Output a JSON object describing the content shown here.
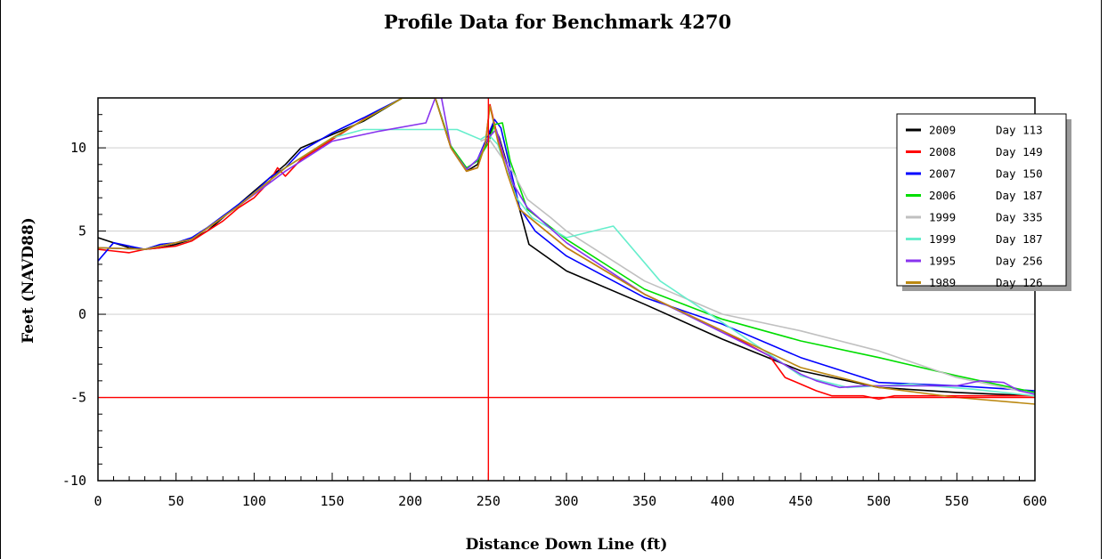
{
  "chart_data": {
    "type": "line",
    "title": "Profile Data for Benchmark 4270",
    "xlabel": "Distance Down Line (ft)",
    "ylabel": "Feet (NAVD88)",
    "xlim": [
      0,
      600
    ],
    "ylim": [
      -10,
      13
    ],
    "xticks": [
      0,
      50,
      100,
      150,
      200,
      250,
      300,
      350,
      400,
      450,
      500,
      550,
      600
    ],
    "yticks": [
      -10,
      -5,
      0,
      5,
      10
    ],
    "grid": "horizontal",
    "legend": "top-right",
    "reference_lines": {
      "x": 250,
      "y": -5,
      "color": "#ff0000"
    },
    "series": [
      {
        "name": "2009",
        "day_label": "Day 113",
        "color": "#000000",
        "x": [
          0,
          10,
          20,
          30,
          40,
          50,
          60,
          70,
          80,
          90,
          100,
          110,
          120,
          130,
          150,
          170,
          195,
          216,
          226,
          236,
          243,
          250,
          253,
          257,
          262,
          268,
          276,
          300,
          350,
          400,
          450,
          500,
          550,
          600
        ],
        "y": [
          4.6,
          4.3,
          4.0,
          3.9,
          4.0,
          4.2,
          4.5,
          5.0,
          5.8,
          6.6,
          7.4,
          8.2,
          9.0,
          10.0,
          10.8,
          11.6,
          13.0,
          13.0,
          10.0,
          8.6,
          9.0,
          10.6,
          11.4,
          10.6,
          9.0,
          7.0,
          4.2,
          2.6,
          0.6,
          -1.5,
          -3.4,
          -4.4,
          -4.7,
          -4.9
        ]
      },
      {
        "name": "2008",
        "day_label": "Day 149",
        "color": "#ff0000",
        "x": [
          0,
          10,
          20,
          30,
          40,
          50,
          60,
          70,
          80,
          90,
          100,
          110,
          115,
          120,
          130,
          150,
          170,
          195,
          216,
          226,
          236,
          243,
          248,
          251,
          256,
          262,
          270,
          300,
          350,
          400,
          430,
          440,
          460,
          470,
          490,
          500,
          510,
          550,
          600
        ],
        "y": [
          3.9,
          3.8,
          3.7,
          3.9,
          4.0,
          4.1,
          4.4,
          5.0,
          5.6,
          6.4,
          7.0,
          8.0,
          8.8,
          8.3,
          9.3,
          10.5,
          11.7,
          13.0,
          13.0,
          10.0,
          8.6,
          8.8,
          10.2,
          12.6,
          10.6,
          8.5,
          6.3,
          4.0,
          1.2,
          -1.0,
          -2.5,
          -3.8,
          -4.6,
          -4.9,
          -4.9,
          -5.1,
          -4.9,
          -4.9,
          -4.9
        ]
      },
      {
        "name": "2007",
        "day_label": "Day 150",
        "color": "#0000ff",
        "x": [
          0,
          10,
          20,
          30,
          40,
          50,
          60,
          70,
          80,
          90,
          100,
          110,
          120,
          130,
          150,
          170,
          195,
          216,
          226,
          236,
          243,
          250,
          254,
          258,
          263,
          270,
          280,
          300,
          350,
          400,
          450,
          500,
          550,
          600
        ],
        "y": [
          3.2,
          4.3,
          4.1,
          3.9,
          4.2,
          4.3,
          4.6,
          5.2,
          5.9,
          6.6,
          7.3,
          8.2,
          8.8,
          9.8,
          10.9,
          11.8,
          13.0,
          13.0,
          10.1,
          8.7,
          9.3,
          10.8,
          11.7,
          11.2,
          9.2,
          6.4,
          5.0,
          3.5,
          1.0,
          -0.6,
          -2.6,
          -4.1,
          -4.3,
          -4.6
        ]
      },
      {
        "name": "2006",
        "day_label": "Day 187",
        "color": "#00dd00",
        "x": [
          0,
          30,
          60,
          90,
          120,
          150,
          180,
          195,
          216,
          226,
          236,
          243,
          250,
          254,
          259,
          264,
          275,
          300,
          350,
          400,
          450,
          500,
          550,
          600
        ],
        "y": [
          4.0,
          3.9,
          4.5,
          6.5,
          8.8,
          10.6,
          12.2,
          13.0,
          13.0,
          10.1,
          8.8,
          9.2,
          10.3,
          11.4,
          11.5,
          9.2,
          6.3,
          4.5,
          1.5,
          -0.3,
          -1.6,
          -2.6,
          -3.7,
          -4.7
        ]
      },
      {
        "name": "1999",
        "day_label": "Day 335",
        "color": "#c0c0c0",
        "x": [
          245,
          250,
          258,
          266,
          275,
          290,
          300,
          350,
          400,
          450,
          500,
          550,
          600
        ],
        "y": [
          10.4,
          10.6,
          9.5,
          8.5,
          6.9,
          5.8,
          5.0,
          2.0,
          0.0,
          -1.0,
          -2.2,
          -3.8,
          -4.8
        ]
      },
      {
        "name": "1999",
        "day_label": "Day 187",
        "color": "#66eecc",
        "x": [
          0,
          30,
          60,
          90,
          120,
          150,
          170,
          200,
          230,
          245,
          250,
          256,
          262,
          268,
          278,
          300,
          330,
          360,
          400,
          430,
          450,
          480,
          520,
          560,
          600
        ],
        "y": [
          4.0,
          3.9,
          4.5,
          6.5,
          8.8,
          10.6,
          11.1,
          11.1,
          11.1,
          10.5,
          10.8,
          10.2,
          8.6,
          7.0,
          5.8,
          4.6,
          5.3,
          2.0,
          -0.5,
          -2.4,
          -3.7,
          -4.4,
          -4.2,
          -4.5,
          -4.9
        ]
      },
      {
        "name": "1995",
        "day_label": "Day 256",
        "color": "#8833ee",
        "x": [
          0,
          30,
          60,
          90,
          120,
          150,
          180,
          210,
          216,
          220,
          226,
          236,
          243,
          250,
          255,
          260,
          266,
          275,
          300,
          350,
          400,
          430,
          450,
          460,
          475,
          490,
          520,
          550,
          565,
          580,
          590,
          600
        ],
        "y": [
          4.0,
          3.9,
          4.5,
          6.5,
          8.6,
          10.4,
          11.0,
          11.5,
          13.0,
          13.0,
          10.0,
          8.7,
          9.3,
          10.6,
          11.1,
          9.5,
          7.8,
          6.4,
          4.3,
          1.2,
          -1.1,
          -2.5,
          -3.6,
          -4.0,
          -4.4,
          -4.3,
          -4.3,
          -4.3,
          -4.0,
          -4.1,
          -4.6,
          -4.8
        ]
      },
      {
        "name": "1989",
        "day_label": "Day 126",
        "color": "#bb8811",
        "x": [
          0,
          30,
          60,
          90,
          120,
          150,
          195,
          216,
          226,
          236,
          243,
          248,
          251,
          256,
          262,
          270,
          300,
          350,
          400,
          450,
          500,
          550,
          600
        ],
        "y": [
          4.0,
          3.9,
          4.5,
          6.5,
          8.8,
          10.6,
          13.0,
          13.0,
          10.0,
          8.6,
          8.8,
          10.2,
          12.5,
          10.4,
          8.5,
          6.3,
          4.0,
          1.2,
          -1.0,
          -3.2,
          -4.4,
          -5.0,
          -5.4
        ]
      }
    ]
  }
}
